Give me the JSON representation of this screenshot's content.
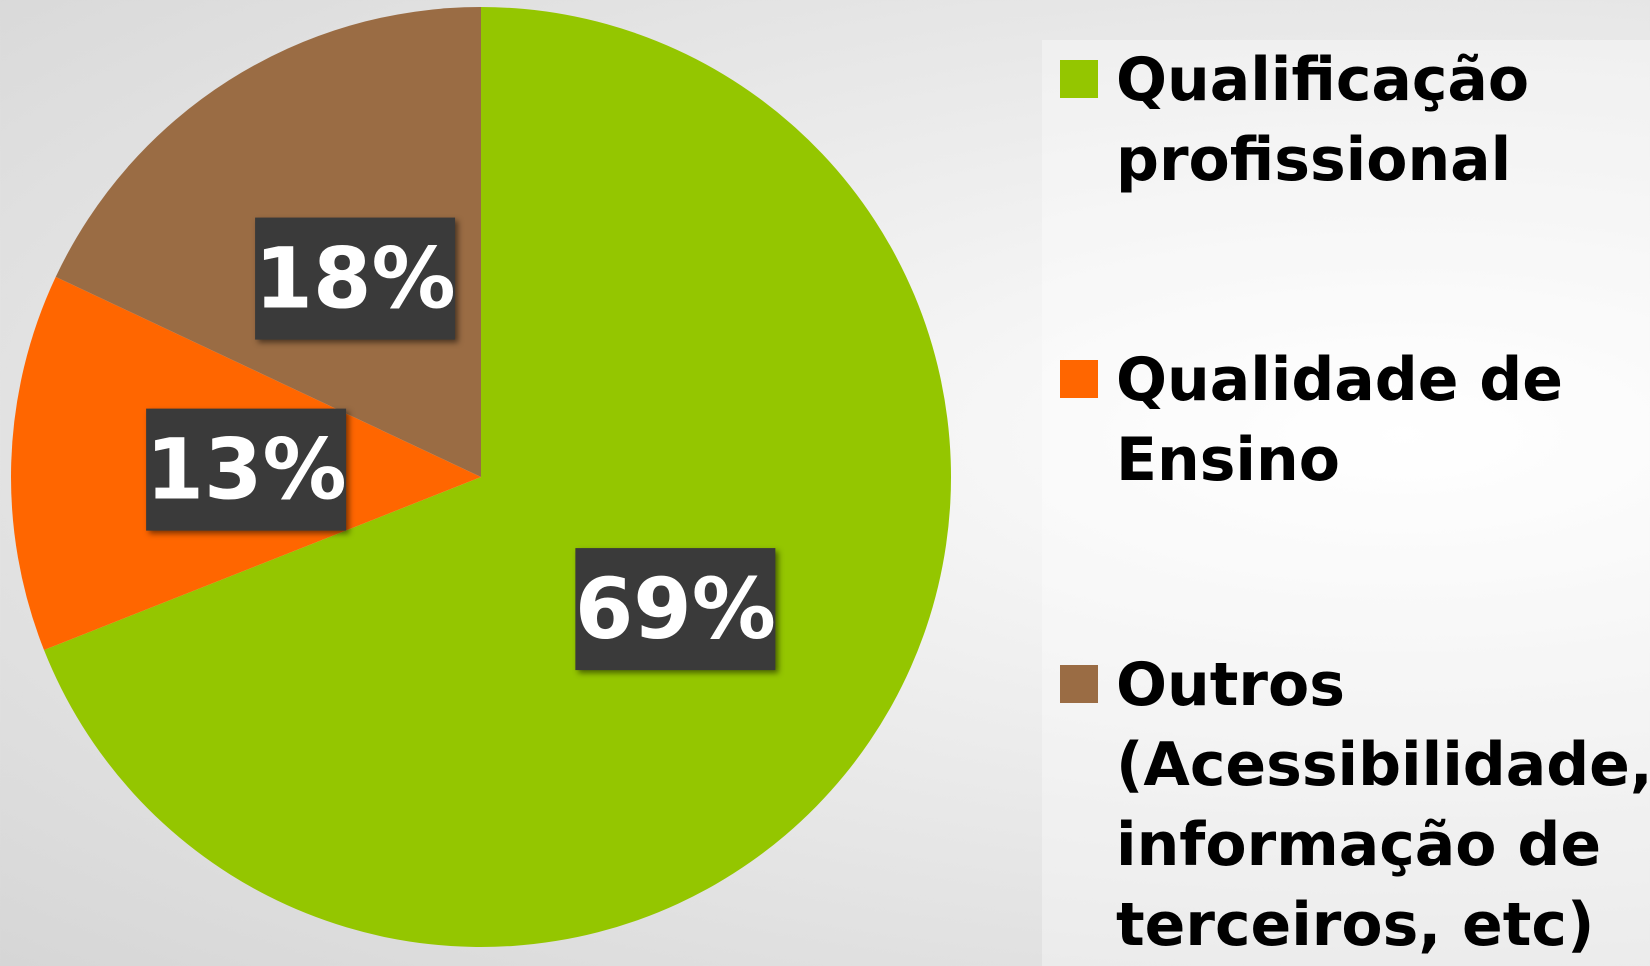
{
  "chart_data": {
    "type": "pie",
    "categories": [
      "Qualificação profissional",
      "Qualidade de Ensino",
      "Outros (Acessibilidade, informação de terceiros, etc)"
    ],
    "values": [
      69,
      13,
      18
    ],
    "value_labels": [
      "69%",
      "13%",
      "18%"
    ],
    "colors": [
      "#94c600",
      "#ff6600",
      "#9a6c44"
    ]
  }
}
